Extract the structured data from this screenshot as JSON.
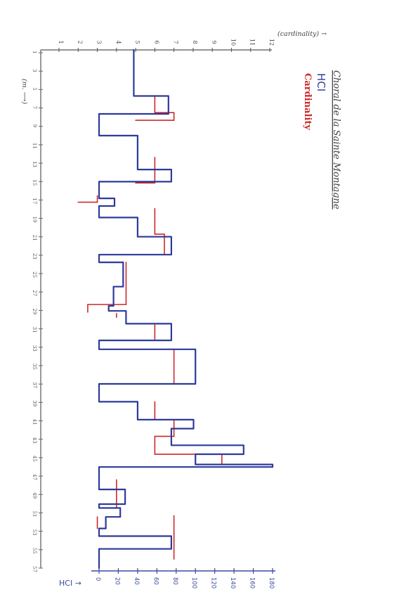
{
  "chart_data": {
    "type": "step",
    "orientation": "rotated",
    "title": "Choral de la Sainte Montagne",
    "legend": [
      {
        "name": "HCI",
        "color": "#2d3a9a"
      },
      {
        "name": "Cardinality",
        "color": "#cc2a2a"
      }
    ],
    "top_axis": {
      "label": "(cardinality) →",
      "ticks": [
        1,
        2,
        3,
        4,
        5,
        6,
        7,
        8,
        9,
        10,
        11,
        12
      ]
    },
    "bottom_axis": {
      "label": "HCI →",
      "ticks": [
        0,
        20,
        40,
        60,
        80,
        100,
        120,
        140,
        160,
        180
      ],
      "tick_labels": [
        "0",
        "20",
        "40",
        "60",
        "80",
        "100",
        "120",
        "140",
        "160",
        "180"
      ]
    },
    "left_axis": {
      "label": "(m. ⟶)",
      "ticks": [
        "1",
        "3",
        "5",
        "7",
        "9",
        "11",
        "13",
        "15",
        "17",
        "19",
        "21",
        "23",
        "25",
        "27",
        "29",
        "31",
        "33",
        "35",
        "37",
        "39",
        "41",
        "43",
        "45",
        "47",
        "49",
        "51",
        "53",
        "55",
        "57"
      ]
    },
    "series": [
      {
        "name": "HCI",
        "color": "#2d3a9a",
        "values": [
          [
            0,
            36
          ],
          [
            72,
            36
          ],
          [
            72,
            72
          ],
          [
            100,
            72
          ],
          [
            100,
            0
          ],
          [
            134,
            0
          ],
          [
            134,
            40
          ],
          [
            187,
            40
          ],
          [
            187,
            75
          ],
          [
            206,
            75
          ],
          [
            206,
            0
          ],
          [
            232,
            0
          ],
          [
            232,
            16
          ],
          [
            244,
            16
          ],
          [
            244,
            0
          ],
          [
            262,
            0
          ],
          [
            262,
            40
          ],
          [
            292,
            40
          ],
          [
            292,
            75
          ],
          [
            320,
            75
          ],
          [
            320,
            0
          ],
          [
            332,
            0
          ],
          [
            332,
            25
          ],
          [
            370,
            25
          ],
          [
            370,
            15
          ],
          [
            400,
            15
          ],
          [
            400,
            10
          ],
          [
            408,
            10
          ],
          [
            408,
            28
          ],
          [
            428,
            28
          ],
          [
            428,
            75
          ],
          [
            454,
            75
          ],
          [
            454,
            0
          ],
          [
            468,
            0
          ],
          [
            468,
            100
          ],
          [
            522,
            100
          ],
          [
            522,
            0
          ],
          [
            550,
            0
          ],
          [
            550,
            40
          ],
          [
            578,
            40
          ],
          [
            578,
            98
          ],
          [
            592,
            98
          ],
          [
            592,
            75
          ],
          [
            618,
            75
          ],
          [
            618,
            150
          ],
          [
            632,
            150
          ],
          [
            632,
            100
          ],
          [
            648,
            100
          ],
          [
            648,
            180
          ],
          [
            652,
            180
          ],
          [
            652,
            0
          ],
          [
            687,
            0
          ],
          [
            687,
            27
          ],
          [
            710,
            27
          ],
          [
            710,
            0
          ],
          [
            716,
            0
          ],
          [
            716,
            22
          ],
          [
            730,
            22
          ],
          [
            730,
            7
          ],
          [
            748,
            7
          ],
          [
            748,
            0
          ],
          [
            760,
            0
          ],
          [
            760,
            75
          ],
          [
            780,
            75
          ],
          [
            780,
            0
          ],
          [
            810,
            0
          ]
        ]
      },
      {
        "name": "Cardinality",
        "color": "#cc2a2a",
        "values": [
          [
            72,
            6
          ],
          [
            98,
            6
          ],
          [
            98,
            7
          ],
          [
            110,
            7
          ],
          [
            110,
            5
          ],
          [
            168,
            6
          ],
          [
            208,
            6
          ],
          [
            208,
            5
          ],
          [
            228,
            3
          ],
          [
            238,
            3
          ],
          [
            238,
            2
          ],
          [
            248,
            6
          ],
          [
            288,
            6
          ],
          [
            288,
            6.5
          ],
          [
            320,
            6.5
          ],
          [
            320,
            5
          ],
          [
            332,
            4.5
          ],
          [
            398,
            4.5
          ],
          [
            398,
            2.5
          ],
          [
            410,
            2.5
          ],
          [
            412,
            4
          ],
          [
            418,
            4
          ],
          [
            428,
            6
          ],
          [
            454,
            6
          ],
          [
            468,
            7
          ],
          [
            522,
            7
          ],
          [
            550,
            6
          ],
          [
            578,
            6
          ],
          [
            578,
            7
          ],
          [
            604,
            7
          ],
          [
            604,
            6
          ],
          [
            632,
            6
          ],
          [
            632,
            9.5
          ],
          [
            648,
            9.5
          ],
          [
            672,
            4
          ],
          [
            687,
            4
          ],
          [
            700,
            4
          ],
          [
            716,
            4
          ],
          [
            730,
            3
          ],
          [
            748,
            3
          ],
          [
            728,
            7
          ],
          [
            760,
            7
          ],
          [
            766,
            7
          ],
          [
            796,
            7
          ]
        ]
      }
    ],
    "annotations": []
  }
}
